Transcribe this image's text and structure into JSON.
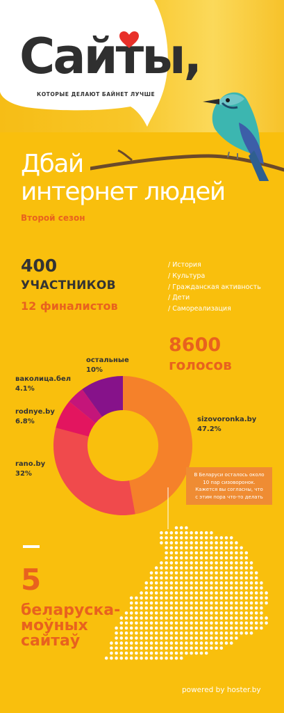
{
  "header": {
    "logo_text": "Сайты,",
    "tagline": "КОТОРЫЕ ДЕЛАЮТ БАЙНЕТ ЛУЧШЕ",
    "heart_color": "#e8302a"
  },
  "headline": {
    "line1": "Дбай",
    "line2": "интернет людей",
    "season": "Второй сезон"
  },
  "stats": {
    "participants_number": "400",
    "participants_label": "УЧАСТНИКОВ",
    "finalists": "12 финалистов",
    "votes_number": "8600",
    "votes_label": "голосов",
    "sites_number": "5",
    "sites_label": [
      "беларуска-",
      "моўных",
      "сайтаў"
    ]
  },
  "categories": [
    "/ История",
    "/ Культура",
    "/ Гражданская активность",
    "/ Дети",
    "/ Самореализация"
  ],
  "note": {
    "text": [
      "В Беларуси осталось около",
      "10 пар сизоворонок.",
      "Кажется вы согласны, что",
      "с этим пора что-то делать"
    ]
  },
  "footer": {
    "powered_by": "powered by hoster.by"
  },
  "chart_data": {
    "type": "pie",
    "title": "",
    "slices": [
      {
        "name": "sizovoronka.by",
        "value": 47.2,
        "label": "47.2%",
        "color": "#f5812a"
      },
      {
        "name": "rano.by",
        "value": 32,
        "label": "32%",
        "color": "#f04a4c"
      },
      {
        "name": "rodnye.by",
        "value": 6.8,
        "label": "6.8%",
        "color": "#e3155f"
      },
      {
        "name": "ваколица.бел",
        "value": 4.1,
        "label": "4.1%",
        "color": "#c4157a"
      },
      {
        "name": "остальные",
        "value": 10,
        "label": "10%",
        "color": "#86128a"
      }
    ],
    "donut": true,
    "legend": "labels-around"
  }
}
